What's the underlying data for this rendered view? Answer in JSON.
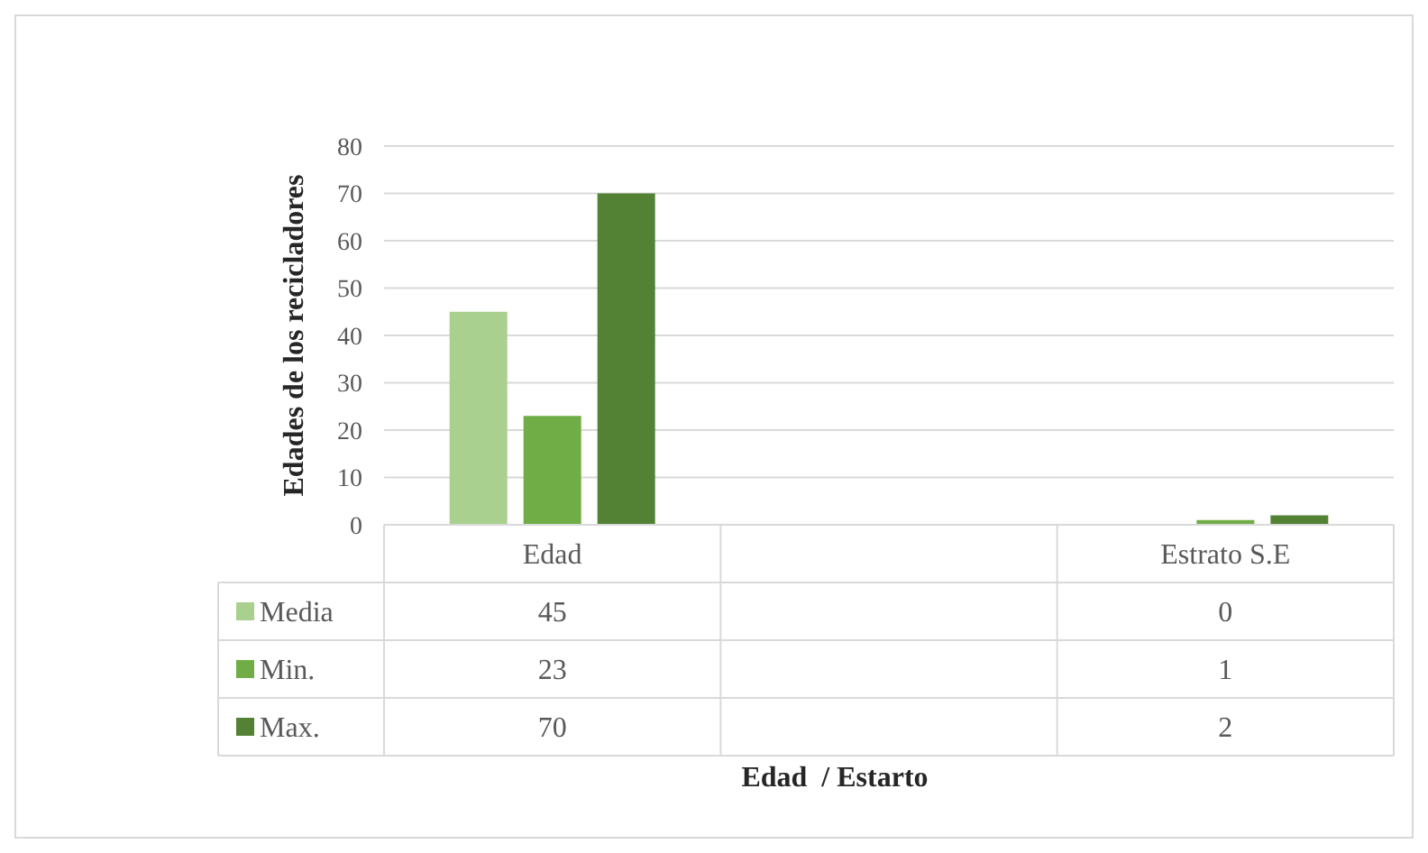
{
  "chart_data": {
    "type": "bar",
    "categories": [
      "Edad",
      null,
      "Estrato S.E"
    ],
    "series": [
      {
        "name": "Media",
        "color": "#a9d08e",
        "values": [
          45,
          null,
          0
        ]
      },
      {
        "name": "Min.",
        "color": "#70ad47",
        "values": [
          23,
          null,
          1
        ]
      },
      {
        "name": "Max.",
        "color": "#548235",
        "values": [
          70,
          null,
          2
        ]
      }
    ],
    "ylim": [
      0,
      80
    ],
    "yticks": [
      0,
      10,
      20,
      30,
      40,
      50,
      60,
      70,
      80
    ],
    "grid": "y",
    "data_labels": true,
    "legend": "bottom left",
    "annotations": [
      "Edad  / Estarto"
    ],
    "ylabel": "Edades de los recicladores"
  }
}
